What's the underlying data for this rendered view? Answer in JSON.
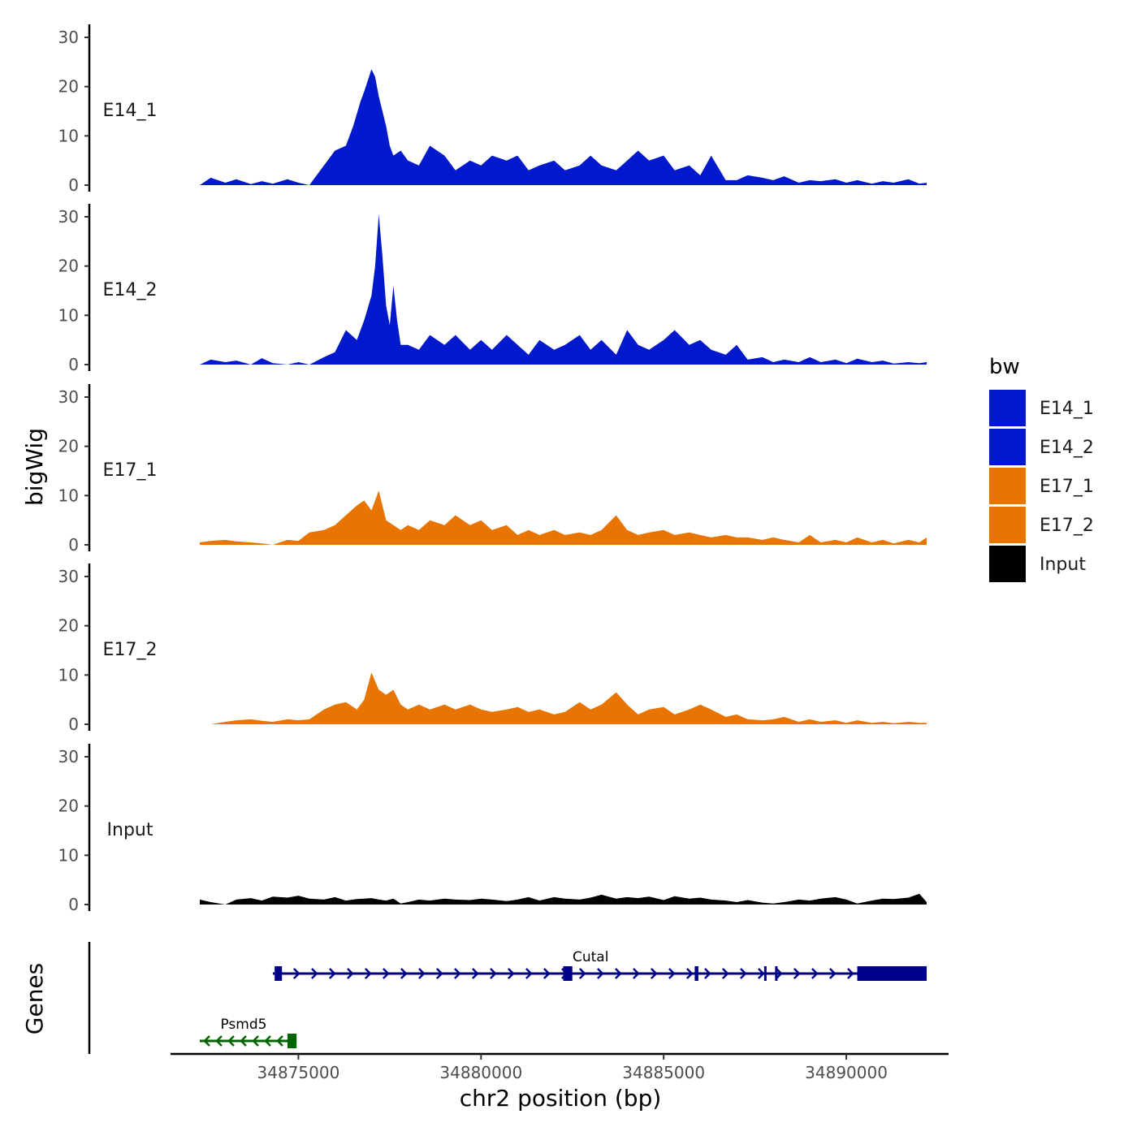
{
  "chart_data": {
    "type": "area",
    "title": "",
    "ylabel": "bigWig",
    "genes_label": "Genes",
    "xlabel": "chr2 position (bp)",
    "xlim": [
      34871500,
      34892800
    ],
    "ylim": [
      0,
      32
    ],
    "y_ticks": [
      "0",
      "10",
      "20",
      "30"
    ],
    "x_ticks": [
      {
        "value": 34875000,
        "label": "34875000"
      },
      {
        "value": 34880000,
        "label": "34880000"
      },
      {
        "value": 34885000,
        "label": "34885000"
      },
      {
        "value": 34890000,
        "label": "34890000"
      }
    ],
    "legend": {
      "title": "bw",
      "entries": [
        {
          "label": "E14_1",
          "color": "#0019CC"
        },
        {
          "label": "E14_2",
          "color": "#0019CC"
        },
        {
          "label": "E17_1",
          "color": "#E87503"
        },
        {
          "label": "E17_2",
          "color": "#E87503"
        },
        {
          "label": "Input",
          "color": "#000000"
        }
      ]
    },
    "tracks": [
      {
        "name": "E14_1",
        "color": "#0019CC",
        "x": [
          34872300,
          34872600,
          34873000,
          34873300,
          34873700,
          34874000,
          34874300,
          34874700,
          34875000,
          34875300,
          34875700,
          34876000,
          34876300,
          34876500,
          34876700,
          34876800,
          34877000,
          34877100,
          34877200,
          34877300,
          34877400,
          34877500,
          34877600,
          34877800,
          34878000,
          34878300,
          34878600,
          34879000,
          34879300,
          34879700,
          34880000,
          34880300,
          34880700,
          34881000,
          34881300,
          34881600,
          34882000,
          34882300,
          34882700,
          34883000,
          34883300,
          34883700,
          34884000,
          34884300,
          34884600,
          34885000,
          34885300,
          34885700,
          34886000,
          34886300,
          34886700,
          34887000,
          34887300,
          34887700,
          34888000,
          34888300,
          34888700,
          34889000,
          34889300,
          34889700,
          34890000,
          34890300,
          34890700,
          34891000,
          34891300,
          34891700,
          34892000,
          34892200
        ],
        "y": [
          0,
          1.5,
          0.5,
          1.2,
          0.2,
          0.8,
          0.3,
          1.2,
          0.5,
          0,
          4,
          7,
          8,
          12,
          17,
          19,
          23.5,
          22,
          18,
          15,
          12,
          8,
          6,
          7,
          5,
          4,
          8,
          6,
          3,
          5,
          4,
          6,
          5,
          6,
          3,
          4,
          5,
          3,
          4,
          6,
          4,
          3,
          5,
          7,
          5,
          6,
          3,
          4,
          2,
          6,
          1,
          1,
          2,
          1.5,
          1,
          1.8,
          0.5,
          1,
          0.8,
          1.2,
          0.5,
          1,
          0.3,
          0.8,
          0.5,
          1.2,
          0.3,
          0.5
        ]
      },
      {
        "name": "E14_2",
        "color": "#0019CC",
        "x": [
          34872300,
          34872600,
          34873000,
          34873300,
          34873700,
          34874000,
          34874300,
          34874700,
          34875000,
          34875300,
          34875700,
          34876000,
          34876300,
          34876600,
          34876800,
          34877000,
          34877100,
          34877200,
          34877300,
          34877400,
          34877500,
          34877600,
          34877700,
          34877800,
          34878000,
          34878300,
          34878600,
          34879000,
          34879300,
          34879700,
          34880000,
          34880300,
          34880700,
          34881000,
          34881300,
          34881600,
          34882000,
          34882300,
          34882700,
          34883000,
          34883300,
          34883700,
          34884000,
          34884300,
          34884600,
          34885000,
          34885300,
          34885700,
          34886000,
          34886300,
          34886700,
          34887000,
          34887300,
          34887700,
          34888000,
          34888300,
          34888700,
          34889000,
          34889300,
          34889700,
          34890000,
          34890300,
          34890700,
          34891000,
          34891300,
          34891700,
          34892000,
          34892200
        ],
        "y": [
          0,
          1,
          0.5,
          0.8,
          0,
          1.3,
          0.3,
          0,
          0.5,
          0,
          1.5,
          2.5,
          7,
          5,
          9,
          14,
          20,
          30.5,
          22,
          12,
          8,
          16,
          9,
          4,
          4,
          3,
          6,
          4,
          6,
          3,
          5,
          3,
          6,
          4,
          2,
          5,
          3,
          4,
          6,
          3,
          5,
          2,
          7,
          4,
          3,
          5,
          7,
          4,
          5,
          3,
          2,
          4,
          1,
          1.5,
          0.5,
          1,
          0.5,
          1.5,
          0.5,
          1,
          0.3,
          1.2,
          0.5,
          0.8,
          0.2,
          0.5,
          0.3,
          0.5
        ]
      },
      {
        "name": "E17_1",
        "color": "#E87503",
        "x": [
          34872300,
          34872600,
          34873000,
          34873300,
          34873700,
          34874000,
          34874300,
          34874700,
          34875000,
          34875300,
          34875700,
          34876000,
          34876300,
          34876600,
          34876800,
          34877000,
          34877200,
          34877400,
          34877600,
          34877800,
          34878000,
          34878300,
          34878600,
          34879000,
          34879300,
          34879700,
          34880000,
          34880300,
          34880700,
          34881000,
          34881300,
          34881600,
          34882000,
          34882300,
          34882700,
          34883000,
          34883300,
          34883700,
          34884000,
          34884300,
          34884600,
          34885000,
          34885300,
          34885700,
          34886000,
          34886300,
          34886700,
          34887000,
          34887300,
          34887700,
          34888000,
          34888300,
          34888700,
          34889000,
          34889300,
          34889700,
          34890000,
          34890300,
          34890700,
          34891000,
          34891300,
          34891700,
          34892000,
          34892200
        ],
        "y": [
          0.5,
          0.8,
          1,
          0.7,
          0.5,
          0.3,
          0,
          1,
          0.8,
          2.5,
          3,
          4,
          6,
          8,
          9,
          7,
          11,
          5,
          4,
          3,
          4,
          3,
          5,
          4,
          6,
          4,
          5,
          3,
          4,
          2,
          3,
          2,
          3,
          2,
          2.5,
          2,
          3,
          6,
          3,
          2,
          2.5,
          3,
          2,
          2.5,
          2,
          1.5,
          2,
          1.5,
          1.5,
          1,
          1.5,
          1,
          0.5,
          2,
          0.5,
          1,
          0.5,
          1.5,
          0.5,
          1,
          0.3,
          1,
          0.5,
          1.5
        ]
      },
      {
        "name": "E17_2",
        "color": "#E87503",
        "x": [
          34872300,
          34872600,
          34873000,
          34873300,
          34873700,
          34874000,
          34874300,
          34874700,
          34875000,
          34875300,
          34875700,
          34876000,
          34876300,
          34876600,
          34876800,
          34877000,
          34877200,
          34877400,
          34877600,
          34877800,
          34878000,
          34878300,
          34878600,
          34879000,
          34879300,
          34879700,
          34880000,
          34880300,
          34880700,
          34881000,
          34881300,
          34881600,
          34882000,
          34882300,
          34882700,
          34883000,
          34883300,
          34883700,
          34884000,
          34884300,
          34884600,
          34885000,
          34885300,
          34885700,
          34886000,
          34886300,
          34886700,
          34887000,
          34887300,
          34887700,
          34888000,
          34888300,
          34888700,
          34889000,
          34889300,
          34889700,
          34890000,
          34890300,
          34890700,
          34891000,
          34891300,
          34891700,
          34892000,
          34892200
        ],
        "y": [
          0,
          0,
          0.5,
          0.8,
          1,
          0.7,
          0.5,
          1,
          0.8,
          1,
          3,
          4,
          4.5,
          3,
          5,
          10.5,
          7,
          6,
          7,
          4,
          3,
          4,
          3,
          4,
          3,
          4,
          3,
          2.5,
          3,
          3.5,
          2.5,
          3,
          2,
          2.5,
          4.5,
          3,
          4,
          6.5,
          4,
          2,
          3,
          3.5,
          2,
          3,
          4,
          3,
          1.5,
          2,
          1,
          0.8,
          1,
          1.5,
          0.5,
          1,
          0.5,
          0.8,
          0.3,
          0.8,
          0.3,
          0.5,
          0.2,
          0.5,
          0.3,
          0.3
        ]
      },
      {
        "name": "Input",
        "color": "#000000",
        "x": [
          34872300,
          34872600,
          34873000,
          34873300,
          34873700,
          34874000,
          34874300,
          34874700,
          34875000,
          34875300,
          34875700,
          34876000,
          34876300,
          34876600,
          34876800,
          34877000,
          34877200,
          34877400,
          34877600,
          34877800,
          34878000,
          34878300,
          34878600,
          34879000,
          34879300,
          34879700,
          34880000,
          34880300,
          34880700,
          34881000,
          34881300,
          34881600,
          34882000,
          34882300,
          34882700,
          34883000,
          34883300,
          34883700,
          34884000,
          34884300,
          34884600,
          34885000,
          34885300,
          34885700,
          34886000,
          34886300,
          34886700,
          34887000,
          34887300,
          34887700,
          34888000,
          34888300,
          34888700,
          34889000,
          34889300,
          34889700,
          34890000,
          34890300,
          34890700,
          34891000,
          34891300,
          34891700,
          34892000,
          34892200
        ],
        "y": [
          1,
          0.5,
          0,
          1,
          1.3,
          0.8,
          1.6,
          1.4,
          1.8,
          1.2,
          1,
          1.5,
          0.8,
          1.1,
          1.2,
          1.3,
          1,
          0.8,
          1.2,
          0.2,
          0.5,
          1,
          0.8,
          1.2,
          1,
          0.9,
          1.2,
          1,
          0.7,
          1,
          1.5,
          0.8,
          1.5,
          1.2,
          1,
          1.4,
          2,
          1.2,
          1.5,
          1.3,
          1.6,
          0.9,
          1.7,
          1.2,
          1.4,
          1,
          0.8,
          0.5,
          0.9,
          0.4,
          0.2,
          0.5,
          1,
          0.8,
          1.2,
          1.5,
          1,
          0.2,
          0.8,
          1.2,
          1.1,
          1.4,
          2.2,
          0.5
        ]
      }
    ],
    "genes": [
      {
        "name": "Cutal",
        "color": "#00008B",
        "strand": "+",
        "start": 34874300,
        "end": 34892200,
        "exons": [
          [
            34874350,
            34874550
          ],
          [
            34882250,
            34882500
          ],
          [
            34885850,
            34885950
          ],
          [
            34887750,
            34887800
          ],
          [
            34888050,
            34888100
          ],
          [
            34890300,
            34892200
          ]
        ]
      },
      {
        "name": "Psmd5",
        "color": "#006400",
        "strand": "-",
        "start": 34872300,
        "end": 34874950,
        "exons": [
          [
            34874700,
            34874950
          ]
        ]
      }
    ]
  }
}
